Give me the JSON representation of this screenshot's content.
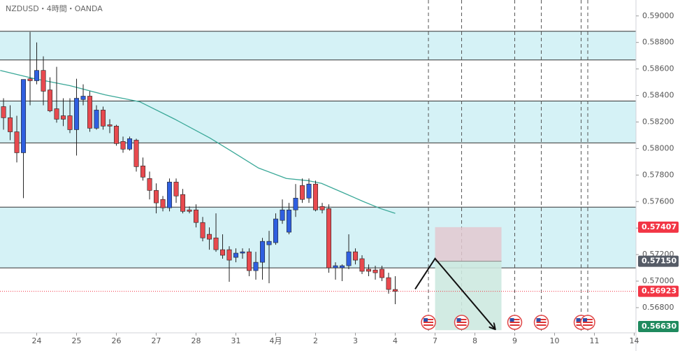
{
  "chart_data": {
    "type": "candlestick",
    "title": "NZDUSD・4時間・OANDA",
    "up_color": "#2f5fe0",
    "down_color": "#e84a4f",
    "xlim": [
      -0.53,
      95.26
    ],
    "ylim": [
      0.5661,
      0.5912
    ],
    "yticks": [
      {
        "value": 0.59,
        "label": "0.59000"
      },
      {
        "value": 0.588,
        "label": "0.58800"
      },
      {
        "value": 0.586,
        "label": "0.58600"
      },
      {
        "value": 0.584,
        "label": "0.58400"
      },
      {
        "value": 0.582,
        "label": "0.58200"
      },
      {
        "value": 0.58,
        "label": "0.58000"
      },
      {
        "value": 0.578,
        "label": "0.57800"
      },
      {
        "value": 0.576,
        "label": "0.57600"
      },
      {
        "value": 0.574,
        "label": "0.57400"
      },
      {
        "value": 0.572,
        "label": "0.57200"
      },
      {
        "value": 0.57,
        "label": "0.57000"
      },
      {
        "value": 0.568,
        "label": "0.56800"
      }
    ],
    "xticks": [
      {
        "value": 5,
        "label": "24"
      },
      {
        "value": 11,
        "label": "25"
      },
      {
        "value": 17,
        "label": "26"
      },
      {
        "value": 23,
        "label": "27"
      },
      {
        "value": 29,
        "label": "28"
      },
      {
        "value": 35,
        "label": "31"
      },
      {
        "value": 41,
        "label": "4月"
      },
      {
        "value": 47,
        "label": "2"
      },
      {
        "value": 53,
        "label": "3"
      },
      {
        "value": 59,
        "label": "4"
      },
      {
        "value": 65,
        "label": "7"
      },
      {
        "value": 71,
        "label": "8"
      },
      {
        "value": 77,
        "label": "9"
      },
      {
        "value": 83,
        "label": "10"
      },
      {
        "value": 89,
        "label": "11"
      },
      {
        "value": 95,
        "label": "14"
      }
    ],
    "open": [
      0.58316,
      0.58232,
      0.58126,
      0.57968,
      0.58526,
      0.58511,
      0.58589,
      0.58442,
      0.583,
      0.58247,
      0.58247,
      0.58142,
      0.58369,
      0.58395,
      0.58153,
      0.5829,
      0.58179,
      0.58169,
      0.58053,
      0.57995,
      0.58063,
      0.57869,
      0.57774,
      0.57684,
      0.57616,
      0.57553,
      0.57747,
      0.57653,
      0.57537,
      0.57537,
      0.57442,
      0.57353,
      0.57326,
      0.57237,
      0.57237,
      0.57179,
      0.57211,
      0.57221,
      0.57079,
      0.57142,
      0.57274,
      0.5729,
      0.57458,
      0.57369,
      0.57537,
      0.57721,
      0.57626,
      0.57732,
      0.57563,
      0.57547,
      0.571,
      0.571,
      0.57116,
      0.57221,
      0.57169,
      0.5709,
      0.57084,
      0.5709,
      0.57026,
      0.56937
    ],
    "high": [
      0.58379,
      0.58326,
      0.58247,
      0.58521,
      0.58879,
      0.588,
      0.58695,
      0.58537,
      0.58616,
      0.58379,
      0.58379,
      0.58526,
      0.58484,
      0.58432,
      0.58326,
      0.58316,
      0.58221,
      0.58179,
      0.5809,
      0.5809,
      0.58074,
      0.57932,
      0.57826,
      0.57737,
      0.57642,
      0.57774,
      0.57774,
      0.57695,
      0.57563,
      0.57579,
      0.57484,
      0.57405,
      0.57511,
      0.57353,
      0.57263,
      0.57247,
      0.57247,
      0.57247,
      0.57221,
      0.57326,
      0.57379,
      0.57511,
      0.57616,
      0.5759,
      0.57732,
      0.57774,
      0.57774,
      0.57758,
      0.5759,
      0.57579,
      0.57142,
      0.57126,
      0.57353,
      0.57247,
      0.57195,
      0.57126,
      0.57116,
      0.57116,
      0.57063,
      0.57037
    ],
    "low": [
      0.58142,
      0.58063,
      0.57895,
      0.57626,
      0.58326,
      0.58484,
      0.58326,
      0.58274,
      0.58195,
      0.58169,
      0.58116,
      0.57947,
      0.58326,
      0.58126,
      0.58142,
      0.58142,
      0.58116,
      0.58021,
      0.57968,
      0.57984,
      0.57826,
      0.57758,
      0.57616,
      0.57511,
      0.57526,
      0.57526,
      0.5759,
      0.57511,
      0.57511,
      0.57405,
      0.573,
      0.57237,
      0.57221,
      0.57169,
      0.56995,
      0.57142,
      0.57169,
      0.57037,
      0.57011,
      0.57011,
      0.56984,
      0.57274,
      0.57432,
      0.57353,
      0.57484,
      0.5759,
      0.5759,
      0.57526,
      0.57511,
      0.57063,
      0.57011,
      0.57,
      0.5709,
      0.57126,
      0.57053,
      0.57037,
      0.57011,
      0.57,
      0.56905,
      0.56826
    ],
    "close": [
      0.58232,
      0.58126,
      0.57968,
      0.58521,
      0.58511,
      0.58589,
      0.58432,
      0.58284,
      0.58221,
      0.58221,
      0.58142,
      0.58379,
      0.58395,
      0.58153,
      0.5829,
      0.58169,
      0.58169,
      0.58037,
      0.57995,
      0.58074,
      0.57863,
      0.57784,
      0.57684,
      0.5759,
      0.57553,
      0.57747,
      0.57642,
      0.57526,
      0.57526,
      0.57442,
      0.57326,
      0.57316,
      0.57237,
      0.57195,
      0.57158,
      0.57211,
      0.57221,
      0.57079,
      0.57142,
      0.573,
      0.573,
      0.57469,
      0.57537,
      0.57537,
      0.57626,
      0.57616,
      0.57732,
      0.57537,
      0.57537,
      0.571,
      0.57116,
      0.57116,
      0.57221,
      0.57158,
      0.57074,
      0.57074,
      0.57063,
      0.57026,
      0.56937,
      0.56923
    ],
    "ma": {
      "color": "#3aa898",
      "x": [
        -0.5,
        4.7,
        10,
        15.3,
        20.5,
        25.8,
        31.1,
        34.2,
        38.4,
        42.6,
        45.8,
        47.9,
        51.1,
        54.2,
        56.8,
        59
      ],
      "values": [
        0.58589,
        0.58526,
        0.58474,
        0.58405,
        0.58353,
        0.58221,
        0.58079,
        0.57984,
        0.57853,
        0.57774,
        0.57758,
        0.57737,
        0.57668,
        0.576,
        0.57547,
        0.57511
      ]
    },
    "zones": [
      [
        0.58884,
        0.58668
      ],
      [
        0.58358,
        0.58042
      ],
      [
        0.57558,
        0.571
      ]
    ],
    "zone_color": "#d5f2f6",
    "events": [
      64,
      69,
      77,
      81,
      87,
      88
    ],
    "position": {
      "x": [
        65,
        75
      ],
      "stop": 0.57407,
      "entry": 0.5715,
      "target": 0.5663,
      "stop_color": "#e3c9d0",
      "target_color": "#cde9e0"
    },
    "projection": {
      "x": [
        62,
        65,
        74
      ],
      "values": [
        0.5694,
        0.5717,
        0.5664
      ]
    },
    "price_tags": [
      {
        "value": 0.57407,
        "color": "#f23645"
      },
      {
        "value": 0.5715,
        "label": "0.57150",
        "color": "#555b66"
      },
      {
        "value": 0.56923,
        "color": "#f23645",
        "style": "dotted"
      },
      {
        "value": 0.5663,
        "label": "0.56630",
        "color": "#1f8a5e"
      }
    ]
  }
}
